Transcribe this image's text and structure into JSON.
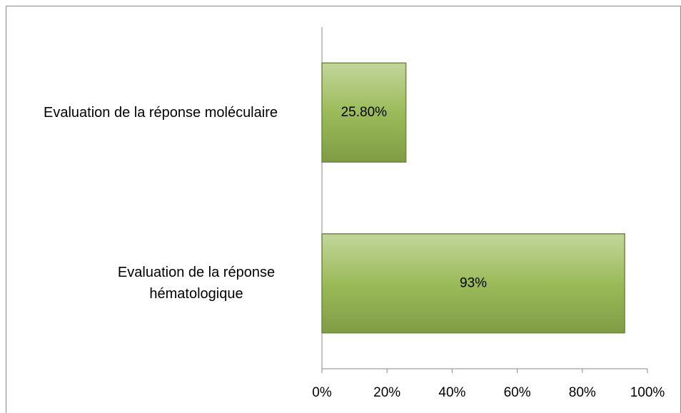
{
  "chart_data": {
    "type": "bar",
    "orientation": "horizontal",
    "categories": [
      "Evaluation de la réponse hématologique",
      "Evaluation de la réponse moléculaire"
    ],
    "values": [
      93,
      25.8
    ],
    "value_labels": [
      "93%",
      "25.80%"
    ],
    "color": "#9bbb59",
    "xlim": [
      0,
      100
    ],
    "xticks": [
      {
        "value": 0,
        "label": "0%"
      },
      {
        "value": 20,
        "label": "20%"
      },
      {
        "value": 40,
        "label": "40%"
      },
      {
        "value": 60,
        "label": "60%"
      },
      {
        "value": 80,
        "label": "80%"
      },
      {
        "value": 100,
        "label": "100%"
      }
    ],
    "grid": false
  }
}
